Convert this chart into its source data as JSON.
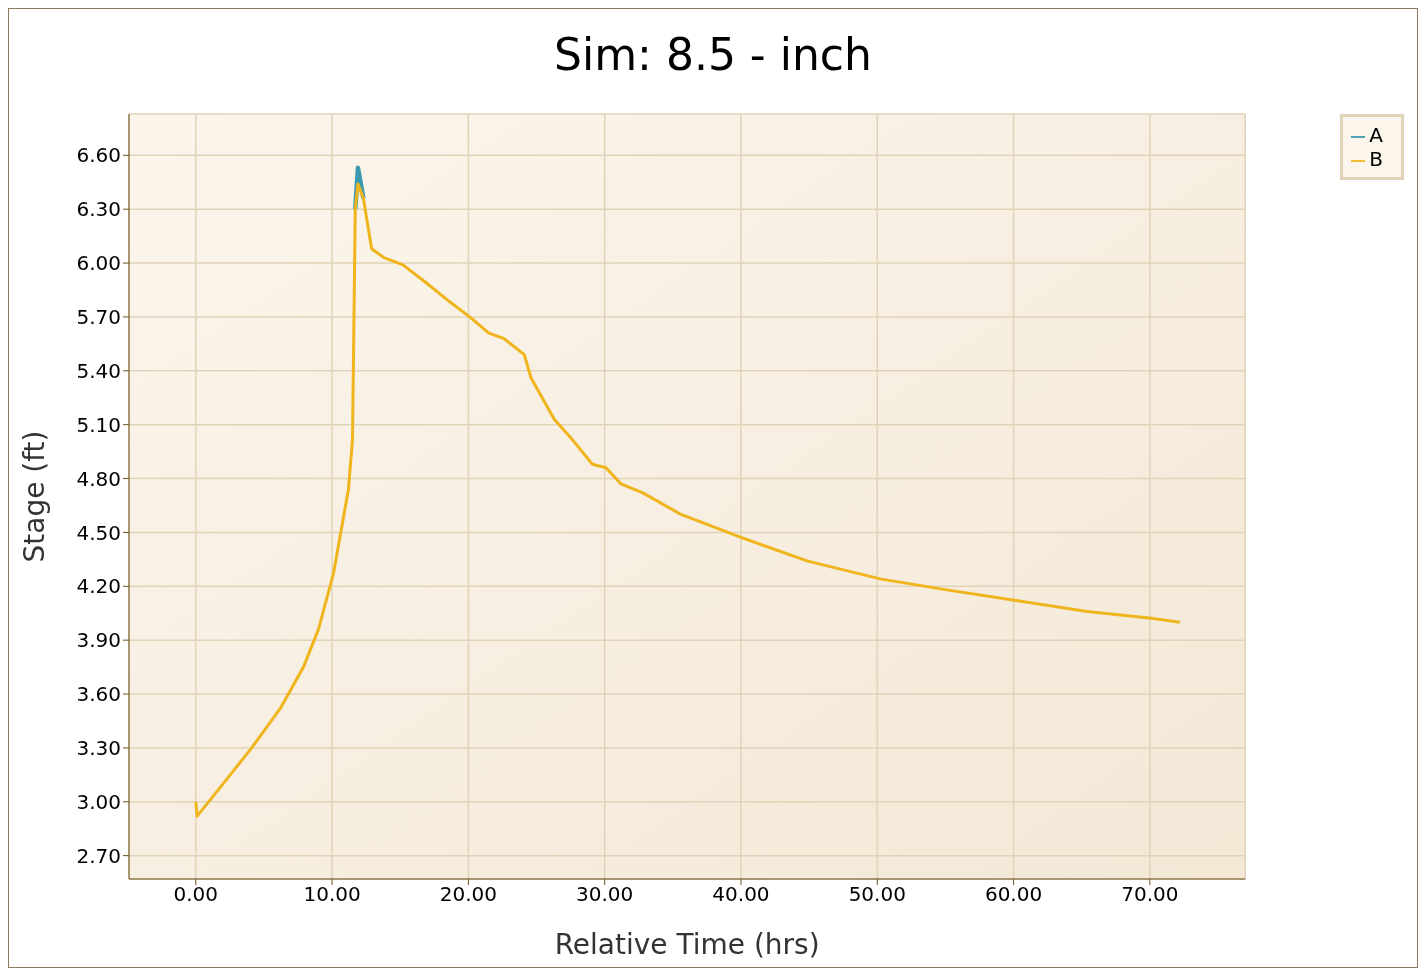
{
  "chart_data": {
    "type": "line",
    "title": "Sim: 8.5 - inch",
    "xlabel": "Relative Time (hrs)",
    "ylabel": "Stage (ft)",
    "x": [
      0,
      0.1,
      2.0,
      4.1,
      6.2,
      7.9,
      9.0,
      10.1,
      11.2,
      11.5,
      11.7,
      11.9,
      12.3,
      12.9,
      13.8,
      15.2,
      16.9,
      18.7,
      20.1,
      21.5,
      22.6,
      24.1,
      24.6,
      26.3,
      27.7,
      29.1,
      30.1,
      31.2,
      32.8,
      35.6,
      40.1,
      44.9,
      50.3,
      55.1,
      60.3,
      65.4,
      70.3,
      72.2
    ],
    "series": [
      {
        "name": "A",
        "color": "#3a9ab0",
        "values": [
          null,
          null,
          null,
          null,
          null,
          null,
          null,
          null,
          null,
          null,
          6.3,
          6.53,
          6.36,
          null,
          null,
          null,
          null,
          null,
          null,
          null,
          null,
          null,
          null,
          null,
          null,
          null,
          null,
          null,
          null,
          null,
          null,
          null,
          null,
          null,
          null,
          null,
          null,
          null
        ]
      },
      {
        "name": "B",
        "color": "#f0b41c",
        "values": [
          3.0,
          2.92,
          3.1,
          3.3,
          3.52,
          3.75,
          3.96,
          4.27,
          4.74,
          5.02,
          6.3,
          6.44,
          6.36,
          6.08,
          6.03,
          5.99,
          5.89,
          5.78,
          5.7,
          5.61,
          5.58,
          5.49,
          5.36,
          5.13,
          5.01,
          4.88,
          4.86,
          4.77,
          4.72,
          4.6,
          4.47,
          4.34,
          4.24,
          4.18,
          4.12,
          4.06,
          4.02,
          4.0
        ]
      }
    ],
    "xlim": [
      -4.9,
      77
    ],
    "xticks": [
      {
        "value": 0,
        "label": "0.00"
      },
      {
        "value": 10,
        "label": "10.00"
      },
      {
        "value": 20,
        "label": "20.00"
      },
      {
        "value": 30,
        "label": "30.00"
      },
      {
        "value": 40,
        "label": "40.00"
      },
      {
        "value": 50,
        "label": "50.00"
      },
      {
        "value": 60,
        "label": "60.00"
      },
      {
        "value": 70,
        "label": "70.00"
      }
    ],
    "ylim": [
      2.57,
      6.83
    ],
    "yticks": [
      {
        "value": 2.7,
        "label": "2.70"
      },
      {
        "value": 3,
        "label": "3.00"
      },
      {
        "value": 3.3,
        "label": "3.30"
      },
      {
        "value": 3.6,
        "label": "3.60"
      },
      {
        "value": 3.9,
        "label": "3.90"
      },
      {
        "value": 4.2,
        "label": "4.20"
      },
      {
        "value": 4.5,
        "label": "4.50"
      },
      {
        "value": 4.8,
        "label": "4.80"
      },
      {
        "value": 5.1,
        "label": "5.10"
      },
      {
        "value": 5.4,
        "label": "5.40"
      },
      {
        "value": 5.7,
        "label": "5.70"
      },
      {
        "value": 6,
        "label": "6.00"
      },
      {
        "value": 6.3,
        "label": "6.30"
      },
      {
        "value": 6.6,
        "label": "6.60"
      }
    ],
    "grid": true,
    "legend": "top right",
    "marker": "none",
    "line_style": "solid"
  }
}
